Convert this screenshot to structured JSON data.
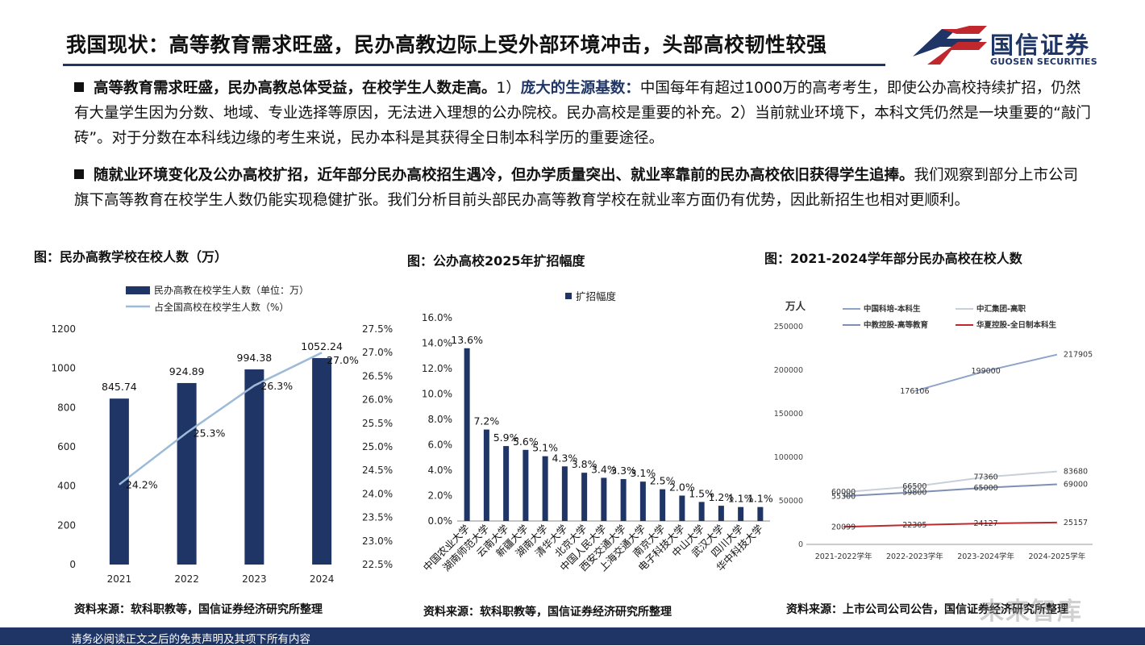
{
  "page": {
    "title": "我国现状：高等教育需求旺盛，民办高教边际上受外部环境冲击，头部高校韧性较强",
    "logo_cn": "国信证券",
    "logo_en": "GUOSEN SECURITIES",
    "footer": "请务必阅读正文之后的免责声明及其项下所有内容",
    "watermark": "未来智库"
  },
  "paragraphs": {
    "p1_bold": "高等教育需求旺盛，民办高教总体受益，在校学生人数走高。",
    "p1_mid": "1）",
    "p1_highlight": "庞大的生源基数：",
    "p1_rest": "中国每年有超过1000万的高考考生，即使公办高校持续扩招，仍然有大量学生因为分数、地域、专业选择等原因，无法进入理想的公办院校。民办高校是重要的补充。2）当前就业环境下，本科文凭仍然是一块重要的“敲门砖”。对于分数在本科线边缘的考生来说，民办本科是其获得全日制本科学历的重要途径。",
    "p2_bold": "随就业环境变化及公办高校扩招，近年部分民办高校招生遇冷，但办学质量突出、就业率靠前的民办高校依旧获得学生追捧。",
    "p2_rest": "我们观察到部分上市公司旗下高等教育在校学生人数仍能实现稳健扩张。我们分析目前头部民办高等教育学校在就业率方面仍有优势，因此新招生也相对更顺利。"
  },
  "colors": {
    "navy": "#1e3566",
    "light_blue": "#9dbad8",
    "red": "#c0282e"
  },
  "chart_data": [
    {
      "type": "bar",
      "title": "图：民办高教学校在校人数（万）",
      "source": "资料来源：软科职教等，国信证券经济研究所整理",
      "categories": [
        "2021",
        "2022",
        "2023",
        "2024"
      ],
      "series": [
        {
          "name": "民办高教在校学生人数（单位：万）",
          "type": "bar",
          "axis": "left",
          "values": [
            845.74,
            924.89,
            994.38,
            1052.24
          ],
          "labels": [
            "845.74",
            "924.89",
            "994.38",
            "1052.24"
          ],
          "color": "#1e3566"
        },
        {
          "name": "占全国高校在校学生人数（%）",
          "type": "line",
          "axis": "right",
          "values": [
            24.2,
            25.3,
            26.3,
            27.0
          ],
          "labels": [
            "24.2%",
            "25.3%",
            "26.3%",
            "27.0%"
          ],
          "color": "#9dbad8"
        }
      ],
      "ylim": [
        0,
        1200
      ],
      "yticks": [
        "0",
        "200",
        "400",
        "600",
        "800",
        "1000",
        "1200"
      ],
      "y2lim": [
        22.5,
        27.5
      ],
      "y2ticks": [
        "22.5%",
        "23.0%",
        "23.5%",
        "24.0%",
        "24.5%",
        "25.0%",
        "25.5%",
        "26.0%",
        "26.5%",
        "27.0%",
        "27.5%"
      ],
      "legend": "top"
    },
    {
      "type": "bar",
      "title": "图：公办高校2025年扩招幅度",
      "source": "资料来源：软科职教等，国信证券经济研究所整理",
      "categories": [
        "中国农业大学",
        "湖南师范大学",
        "云南大学",
        "新疆大学",
        "湖南大学",
        "清华大学",
        "北京大学",
        "中国人民大学",
        "西安交通大学",
        "上海交通大学",
        "南京大学",
        "电子科技大学",
        "中山大学",
        "武汉大学",
        "四川大学",
        "华中科技大学"
      ],
      "series": [
        {
          "name": "扩招幅度",
          "values": [
            13.6,
            7.2,
            5.9,
            5.6,
            5.1,
            4.3,
            3.8,
            3.4,
            3.3,
            3.1,
            2.5,
            2.0,
            1.5,
            1.2,
            1.1,
            1.1
          ],
          "labels": [
            "13.6%",
            "7.2%",
            "5.9%",
            "5.6%",
            "5.1%",
            "4.3%",
            "3.8%",
            "3.4%",
            "3.3%",
            "3.1%",
            "2.5%",
            "2.0%",
            "1.5%",
            "1.2%",
            "1.1%",
            "1.1%"
          ],
          "color": "#1e3566"
        }
      ],
      "ylim": [
        0,
        16
      ],
      "yticks": [
        "0.0%",
        "2.0%",
        "4.0%",
        "6.0%",
        "8.0%",
        "10.0%",
        "12.0%",
        "14.0%",
        "16.0%"
      ],
      "legend": "top"
    },
    {
      "type": "line",
      "title": "图：2021-2024学年部分民办高校在校人数",
      "source": "资料来源：上市公司公司公告，国信证券经济研究所整理",
      "ylabel": "万人",
      "categories": [
        "2021-2022学年",
        "2022-2023学年",
        "2023-2024学年",
        "2024-2025学年"
      ],
      "series": [
        {
          "name": "中国科培-本科生",
          "values": [
            null,
            176106,
            199000,
            217905
          ],
          "labels": [
            "",
            "176106",
            "199000",
            "217905"
          ],
          "color": "#8fa3c8"
        },
        {
          "name": "中汇集团-高职",
          "values": [
            60000,
            66500,
            77360,
            83680
          ],
          "labels": [
            "60000",
            "66500",
            "77360",
            "83680"
          ],
          "color": "#c8cfd8"
        },
        {
          "name": "中教控股-高等教育",
          "values": [
            55300,
            59800,
            65000,
            69000
          ],
          "labels": [
            "55300",
            "59800",
            "65000",
            "69000"
          ],
          "color": "#7d8fb4"
        },
        {
          "name": "华夏控股-全日制本科生",
          "values": [
            20099,
            22305,
            24127,
            25157
          ],
          "labels": [
            "20099",
            "22305",
            "24127",
            "25157"
          ],
          "color": "#c0282e"
        }
      ],
      "ylim": [
        0,
        250000
      ],
      "yticks": [
        "0",
        "50000",
        "100000",
        "150000",
        "200000",
        "250000"
      ],
      "legend": "top"
    }
  ]
}
